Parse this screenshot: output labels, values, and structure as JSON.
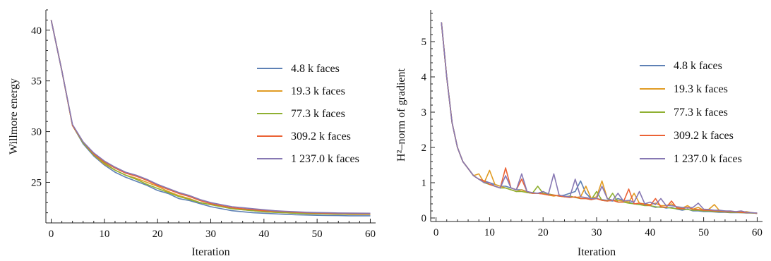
{
  "chart_data": [
    {
      "type": "line",
      "title": "",
      "xlabel": "Iteration",
      "ylabel": "Willmore energy",
      "xlim": [
        -1,
        61
      ],
      "ylim": [
        21,
        42
      ],
      "xticks": [
        "0",
        "10",
        "20",
        "30",
        "40",
        "50",
        "60"
      ],
      "yticks": [
        "25",
        "30",
        "35",
        "40"
      ],
      "grid": false,
      "legend": "right",
      "series": [
        {
          "name": "4.8 k faces",
          "color": "#5E81B5",
          "x": [
            0,
            2,
            4,
            6,
            8,
            10,
            12,
            14,
            16,
            18,
            20,
            22,
            24,
            26,
            28,
            30,
            32,
            34,
            36,
            38,
            40,
            42,
            44,
            46,
            48,
            50,
            52,
            54,
            56,
            58,
            60
          ],
          "y": [
            41.0,
            36.0,
            30.6,
            28.8,
            27.6,
            26.7,
            26.0,
            25.5,
            25.1,
            24.7,
            24.2,
            23.9,
            23.4,
            23.2,
            22.9,
            22.6,
            22.4,
            22.2,
            22.1,
            22.0,
            21.95,
            21.9,
            21.85,
            21.8,
            21.78,
            21.75,
            21.73,
            21.72,
            21.7,
            21.7,
            21.7
          ]
        },
        {
          "name": "19.3 k faces",
          "color": "#E19C24",
          "x": [
            0,
            2,
            4,
            6,
            8,
            10,
            12,
            14,
            16,
            18,
            20,
            22,
            24,
            26,
            28,
            30,
            32,
            34,
            36,
            38,
            40,
            42,
            44,
            46,
            48,
            50,
            52,
            54,
            56,
            58,
            60
          ],
          "y": [
            41.0,
            36.0,
            30.6,
            28.9,
            27.7,
            26.8,
            26.2,
            25.7,
            25.4,
            25.0,
            24.6,
            24.1,
            23.7,
            23.4,
            23.0,
            22.8,
            22.6,
            22.4,
            22.3,
            22.2,
            22.1,
            22.05,
            22.0,
            21.95,
            21.92,
            21.9,
            21.88,
            21.86,
            21.85,
            21.85,
            21.85
          ]
        },
        {
          "name": "77.3 k faces",
          "color": "#8FB032",
          "x": [
            0,
            2,
            4,
            6,
            8,
            10,
            12,
            14,
            16,
            18,
            20,
            22,
            24,
            26,
            28,
            30,
            32,
            34,
            36,
            38,
            40,
            42,
            44,
            46,
            48,
            50,
            52,
            54,
            56,
            58,
            60
          ],
          "y": [
            41.0,
            36.0,
            30.6,
            28.9,
            27.7,
            26.9,
            26.2,
            25.7,
            25.3,
            24.8,
            24.4,
            24.0,
            23.6,
            23.3,
            23.0,
            22.8,
            22.6,
            22.4,
            22.3,
            22.2,
            22.1,
            22.05,
            22.0,
            21.95,
            21.92,
            21.9,
            21.88,
            21.86,
            21.85,
            21.85,
            21.85
          ]
        },
        {
          "name": "309.2 k faces",
          "color": "#EB6235",
          "x": [
            0,
            2,
            4,
            6,
            8,
            10,
            12,
            14,
            16,
            18,
            20,
            22,
            24,
            26,
            28,
            30,
            32,
            34,
            36,
            38,
            40,
            42,
            44,
            46,
            48,
            50,
            52,
            54,
            56,
            58,
            60
          ],
          "y": [
            41.0,
            36.0,
            30.6,
            29.0,
            27.8,
            27.0,
            26.4,
            25.9,
            25.6,
            25.2,
            24.7,
            24.3,
            23.9,
            23.6,
            23.2,
            22.9,
            22.7,
            22.5,
            22.4,
            22.3,
            22.2,
            22.15,
            22.1,
            22.05,
            22.0,
            21.98,
            21.95,
            21.93,
            21.92,
            21.9,
            21.9
          ]
        },
        {
          "name": "1 237.0 k faces",
          "color": "#8778B3",
          "x": [
            0,
            2,
            4,
            6,
            8,
            10,
            12,
            14,
            16,
            18,
            20,
            22,
            24,
            26,
            28,
            30,
            32,
            34,
            36,
            38,
            40,
            42,
            44,
            46,
            48,
            50,
            52,
            54,
            56,
            58,
            60
          ],
          "y": [
            41.0,
            36.0,
            30.7,
            29.0,
            27.9,
            27.1,
            26.5,
            26.0,
            25.7,
            25.3,
            24.8,
            24.4,
            24.0,
            23.7,
            23.3,
            23.0,
            22.8,
            22.6,
            22.5,
            22.4,
            22.3,
            22.2,
            22.15,
            22.1,
            22.05,
            22.02,
            22.0,
            21.98,
            21.97,
            21.96,
            21.95
          ]
        }
      ]
    },
    {
      "type": "line",
      "title": "",
      "xlabel": "Iteration",
      "ylabel": "H²–norm of gradient",
      "xlim": [
        -1,
        61
      ],
      "ylim": [
        -0.1,
        5.9
      ],
      "xticks": [
        "0",
        "10",
        "20",
        "30",
        "40",
        "50",
        "60"
      ],
      "yticks": [
        "0",
        "1",
        "2",
        "3",
        "4",
        "5"
      ],
      "grid": false,
      "legend": "right",
      "series": [
        {
          "name": "4.8 k faces",
          "color": "#5E81B5",
          "x": [
            1,
            2,
            3,
            4,
            5,
            6,
            7,
            8,
            9,
            10,
            11,
            12,
            13,
            14,
            15,
            16,
            17,
            18,
            19,
            20,
            21,
            22,
            23,
            24,
            25,
            26,
            27,
            28,
            29,
            30,
            31,
            32,
            33,
            34,
            35,
            36,
            37,
            38,
            39,
            40,
            41,
            42,
            43,
            44,
            45,
            46,
            47,
            48,
            49,
            50,
            51,
            52,
            53,
            54,
            55,
            56,
            57,
            58,
            59,
            60
          ],
          "y": [
            5.55,
            4.0,
            2.7,
            2.0,
            1.6,
            1.4,
            1.2,
            1.1,
            1.05,
            1.0,
            0.95,
            0.9,
            0.9,
            0.85,
            0.8,
            0.8,
            0.75,
            0.7,
            0.7,
            0.7,
            0.68,
            0.65,
            0.62,
            0.65,
            0.7,
            0.75,
            1.05,
            0.7,
            0.55,
            0.55,
            0.52,
            0.5,
            0.48,
            0.55,
            0.5,
            0.45,
            0.4,
            0.38,
            0.4,
            0.35,
            0.3,
            0.32,
            0.28,
            0.3,
            0.25,
            0.22,
            0.25,
            0.2,
            0.2,
            0.18,
            0.18,
            0.17,
            0.16,
            0.16,
            0.15,
            0.15,
            0.15,
            0.14,
            0.14,
            0.13
          ]
        },
        {
          "name": "19.3 k faces",
          "color": "#E19C24",
          "x": [
            1,
            2,
            3,
            4,
            5,
            6,
            7,
            8,
            9,
            10,
            11,
            12,
            13,
            14,
            15,
            16,
            17,
            18,
            19,
            20,
            21,
            22,
            23,
            24,
            25,
            26,
            27,
            28,
            29,
            30,
            31,
            32,
            33,
            34,
            35,
            36,
            37,
            38,
            39,
            40,
            41,
            42,
            43,
            44,
            45,
            46,
            47,
            48,
            49,
            50,
            51,
            52,
            53,
            54,
            55,
            56,
            57,
            58,
            59,
            60
          ],
          "y": [
            5.55,
            4.0,
            2.7,
            2.0,
            1.6,
            1.4,
            1.2,
            1.25,
            1.0,
            1.35,
            0.95,
            0.9,
            0.85,
            0.8,
            0.75,
            0.8,
            0.72,
            0.7,
            0.7,
            0.68,
            0.65,
            0.62,
            0.65,
            0.6,
            0.62,
            0.58,
            0.6,
            0.9,
            0.55,
            0.6,
            1.05,
            0.55,
            0.5,
            0.5,
            0.48,
            0.45,
            0.7,
            0.42,
            0.4,
            0.38,
            0.42,
            0.35,
            0.35,
            0.4,
            0.3,
            0.28,
            0.35,
            0.25,
            0.3,
            0.22,
            0.25,
            0.38,
            0.2,
            0.2,
            0.18,
            0.18,
            0.17,
            0.18,
            0.15,
            0.14
          ]
        },
        {
          "name": "77.3 k faces",
          "color": "#8FB032",
          "x": [
            1,
            2,
            3,
            4,
            5,
            6,
            7,
            8,
            9,
            10,
            11,
            12,
            13,
            14,
            15,
            16,
            17,
            18,
            19,
            20,
            21,
            22,
            23,
            24,
            25,
            26,
            27,
            28,
            29,
            30,
            31,
            32,
            33,
            34,
            35,
            36,
            37,
            38,
            39,
            40,
            41,
            42,
            43,
            44,
            45,
            46,
            47,
            48,
            49,
            50,
            51,
            52,
            53,
            54,
            55,
            56,
            57,
            58,
            59,
            60
          ],
          "y": [
            5.55,
            4.0,
            2.7,
            2.0,
            1.6,
            1.4,
            1.2,
            1.1,
            1.0,
            0.95,
            0.9,
            0.85,
            0.85,
            0.8,
            0.75,
            0.75,
            0.72,
            0.7,
            0.9,
            0.7,
            0.68,
            0.65,
            0.62,
            0.6,
            0.62,
            0.58,
            0.55,
            0.55,
            0.52,
            0.75,
            0.5,
            0.48,
            0.7,
            0.45,
            0.45,
            0.42,
            0.4,
            0.38,
            0.35,
            0.35,
            0.32,
            0.3,
            0.3,
            0.28,
            0.26,
            0.25,
            0.24,
            0.22,
            0.22,
            0.2,
            0.2,
            0.18,
            0.18,
            0.17,
            0.16,
            0.16,
            0.15,
            0.15,
            0.14,
            0.13
          ]
        },
        {
          "name": "309.2 k faces",
          "color": "#EB6235",
          "x": [
            1,
            2,
            3,
            4,
            5,
            6,
            7,
            8,
            9,
            10,
            11,
            12,
            13,
            14,
            15,
            16,
            17,
            18,
            19,
            20,
            21,
            22,
            23,
            24,
            25,
            26,
            27,
            28,
            29,
            30,
            31,
            32,
            33,
            34,
            35,
            36,
            37,
            38,
            39,
            40,
            41,
            42,
            43,
            44,
            45,
            46,
            47,
            48,
            49,
            50,
            51,
            52,
            53,
            54,
            55,
            56,
            57,
            58,
            59,
            60
          ],
          "y": [
            5.55,
            4.0,
            2.7,
            2.0,
            1.6,
            1.4,
            1.2,
            1.1,
            1.05,
            0.95,
            0.9,
            0.85,
            1.42,
            0.85,
            0.8,
            1.1,
            0.75,
            0.7,
            0.7,
            0.68,
            0.65,
            0.65,
            0.62,
            0.6,
            0.58,
            0.6,
            0.55,
            0.55,
            0.52,
            0.55,
            0.5,
            0.48,
            0.5,
            0.45,
            0.45,
            0.82,
            0.4,
            0.42,
            0.38,
            0.35,
            0.55,
            0.32,
            0.3,
            0.48,
            0.28,
            0.26,
            0.3,
            0.25,
            0.24,
            0.22,
            0.22,
            0.2,
            0.2,
            0.18,
            0.18,
            0.17,
            0.16,
            0.15,
            0.15,
            0.13
          ]
        },
        {
          "name": "1 237.0 k faces",
          "color": "#8778B3",
          "x": [
            1,
            2,
            3,
            4,
            5,
            6,
            7,
            8,
            9,
            10,
            11,
            12,
            13,
            14,
            15,
            16,
            17,
            18,
            19,
            20,
            21,
            22,
            23,
            24,
            25,
            26,
            27,
            28,
            29,
            30,
            31,
            32,
            33,
            34,
            35,
            36,
            37,
            38,
            39,
            40,
            41,
            42,
            43,
            44,
            45,
            46,
            47,
            48,
            49,
            50,
            51,
            52,
            53,
            54,
            55,
            56,
            57,
            58,
            59,
            60
          ],
          "y": [
            5.55,
            4.0,
            2.7,
            2.0,
            1.6,
            1.4,
            1.2,
            1.1,
            1.0,
            1.0,
            0.9,
            0.85,
            1.2,
            0.85,
            0.8,
            1.25,
            0.75,
            0.72,
            0.7,
            0.75,
            0.68,
            1.25,
            0.65,
            0.62,
            0.6,
            1.1,
            0.6,
            0.58,
            0.55,
            0.55,
            0.9,
            0.55,
            0.5,
            0.7,
            0.48,
            0.5,
            0.45,
            0.75,
            0.4,
            0.45,
            0.38,
            0.55,
            0.35,
            0.35,
            0.32,
            0.3,
            0.28,
            0.3,
            0.42,
            0.25,
            0.24,
            0.22,
            0.22,
            0.2,
            0.2,
            0.18,
            0.2,
            0.16,
            0.15,
            0.14
          ]
        }
      ]
    }
  ]
}
